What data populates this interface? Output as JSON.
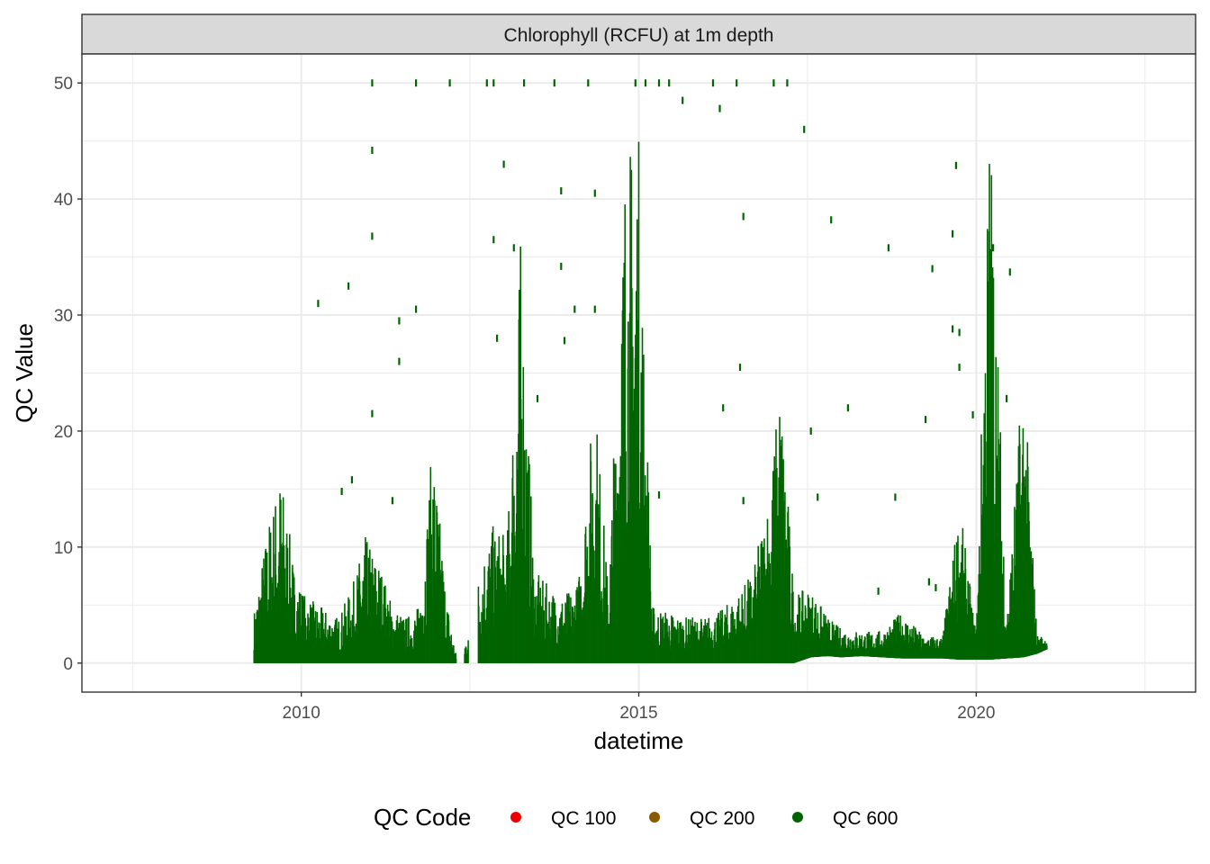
{
  "chart_data": {
    "type": "scatter",
    "facet_title": "Chlorophyll (RCFU) at 1m depth",
    "xlabel": "datetime",
    "ylabel": "QC Value",
    "x_ticks": [
      "2010",
      "2015",
      "2020"
    ],
    "y_ticks": [
      0,
      10,
      20,
      30,
      40,
      50
    ],
    "xlim": [
      2006.75,
      2023.25
    ],
    "ylim": [
      -2.5,
      52.5
    ],
    "grid": true,
    "legend": {
      "title": "QC Code",
      "placement": "bottom",
      "entries": [
        {
          "label": "QC 100",
          "color": "#ee0000"
        },
        {
          "label": "QC 200",
          "color": "#8b5a00"
        },
        {
          "label": "QC 600",
          "color": "#006400"
        }
      ]
    },
    "colors": {
      "QC 600": "#006400",
      "panel_border": "#333333",
      "strip_bg": "#d9d9d9",
      "grid": "#ebebeb"
    },
    "series": [
      {
        "qc_code": "QC 600",
        "approximate_envelope": {
          "x": [
            2009.3,
            2009.5,
            2009.7,
            2009.9,
            2010.05,
            2010.25,
            2010.55,
            2010.75,
            2010.95,
            2011.15,
            2011.35,
            2011.55,
            2011.75,
            2011.95,
            2012.15,
            2012.3,
            2012.45,
            2012.7,
            2012.85,
            2013.05,
            2013.25,
            2013.45,
            2013.7,
            2013.9,
            2014.1,
            2014.35,
            2014.55,
            2014.8,
            2015.0,
            2015.2,
            2015.45,
            2015.7,
            2015.95,
            2016.2,
            2016.45,
            2016.7,
            2016.95,
            2017.1,
            2017.3,
            2017.55,
            2017.8,
            2018.0,
            2018.3,
            2018.6,
            2018.9,
            2019.2,
            2019.5,
            2019.75,
            2020.0,
            2020.2,
            2020.45,
            2020.7,
            2020.9,
            2021.05
          ],
          "upper": [
            4.5,
            12.0,
            16.8,
            8.0,
            6.0,
            5.0,
            4.0,
            6.5,
            11.0,
            9.0,
            5.0,
            4.0,
            5.0,
            19.5,
            6.0,
            0.5,
            2.5,
            10.0,
            12.0,
            11.0,
            37.0,
            8.0,
            6.5,
            6.0,
            7.0,
            24.0,
            6.5,
            45.0,
            46.0,
            5.0,
            4.5,
            4.0,
            4.0,
            4.5,
            6.0,
            8.0,
            16.0,
            25.0,
            6.0,
            6.5,
            4.0,
            3.0,
            2.8,
            2.8,
            4.5,
            2.5,
            2.3,
            14.0,
            2.5,
            50.0,
            4.0,
            26.5,
            2.5,
            2.2
          ],
          "lower": [
            0,
            0,
            0,
            0,
            0,
            0,
            0,
            0,
            0,
            0,
            0,
            0,
            0,
            0,
            0,
            0,
            0,
            0,
            0,
            0,
            0,
            0,
            0,
            0,
            0,
            0,
            0,
            0,
            0,
            0,
            0,
            0,
            0,
            0,
            0,
            0,
            0,
            0,
            0,
            0.5,
            0.6,
            0.5,
            0.6,
            0.5,
            0.4,
            0.4,
            0.4,
            0.3,
            0.3,
            0.3,
            0.4,
            0.5,
            0.8,
            1.2
          ]
        },
        "outliers": [
          [
            2011.05,
            50
          ],
          [
            2011.7,
            50
          ],
          [
            2012.2,
            50
          ],
          [
            2012.75,
            50
          ],
          [
            2012.85,
            50
          ],
          [
            2013.3,
            50
          ],
          [
            2013.75,
            50
          ],
          [
            2014.25,
            50
          ],
          [
            2014.95,
            50
          ],
          [
            2015.1,
            50
          ],
          [
            2015.3,
            50
          ],
          [
            2015.45,
            50
          ],
          [
            2016.1,
            50
          ],
          [
            2016.45,
            50
          ],
          [
            2017.0,
            50
          ],
          [
            2017.2,
            50
          ],
          [
            2015.65,
            48.5
          ],
          [
            2016.2,
            47.8
          ],
          [
            2017.45,
            46
          ],
          [
            2011.05,
            44.2
          ],
          [
            2013.0,
            43.0
          ],
          [
            2019.7,
            42.9
          ],
          [
            2013.85,
            40.7
          ],
          [
            2014.35,
            40.5
          ],
          [
            2016.55,
            38.5
          ],
          [
            2017.85,
            38.2
          ],
          [
            2019.65,
            37
          ],
          [
            2011.05,
            36.8
          ],
          [
            2012.85,
            36.5
          ],
          [
            2013.15,
            35.8
          ],
          [
            2018.7,
            35.8
          ],
          [
            2020.25,
            35.8
          ],
          [
            2019.35,
            34
          ],
          [
            2013.85,
            34.2
          ],
          [
            2020.5,
            33.7
          ],
          [
            2010.25,
            31.0
          ],
          [
            2010.7,
            32.5
          ],
          [
            2011.7,
            30.5
          ],
          [
            2014.05,
            30.5
          ],
          [
            2014.35,
            30.5
          ],
          [
            2011.45,
            29.5
          ],
          [
            2012.9,
            28.0
          ],
          [
            2013.9,
            27.8
          ],
          [
            2019.75,
            28.5
          ],
          [
            2011.45,
            26.0
          ],
          [
            2016.5,
            25.5
          ],
          [
            2019.75,
            25.5
          ],
          [
            2013.5,
            22.8
          ],
          [
            2016.25,
            22.0
          ],
          [
            2018.1,
            22.0
          ],
          [
            2011.05,
            21.5
          ],
          [
            2019.95,
            21.4
          ],
          [
            2019.25,
            21.0
          ],
          [
            2020.45,
            22.8
          ],
          [
            2017.55,
            20.0
          ],
          [
            2010.75,
            15.8
          ],
          [
            2015.3,
            14.5
          ],
          [
            2017.65,
            14.3
          ],
          [
            2018.8,
            14.3
          ],
          [
            2016.55,
            14.0
          ],
          [
            2010.6,
            14.8
          ],
          [
            2011.35,
            14.0
          ],
          [
            2019.65,
            28.8
          ],
          [
            2018.55,
            6.2
          ],
          [
            2019.3,
            7.0
          ],
          [
            2019.4,
            6.5
          ]
        ]
      }
    ]
  }
}
